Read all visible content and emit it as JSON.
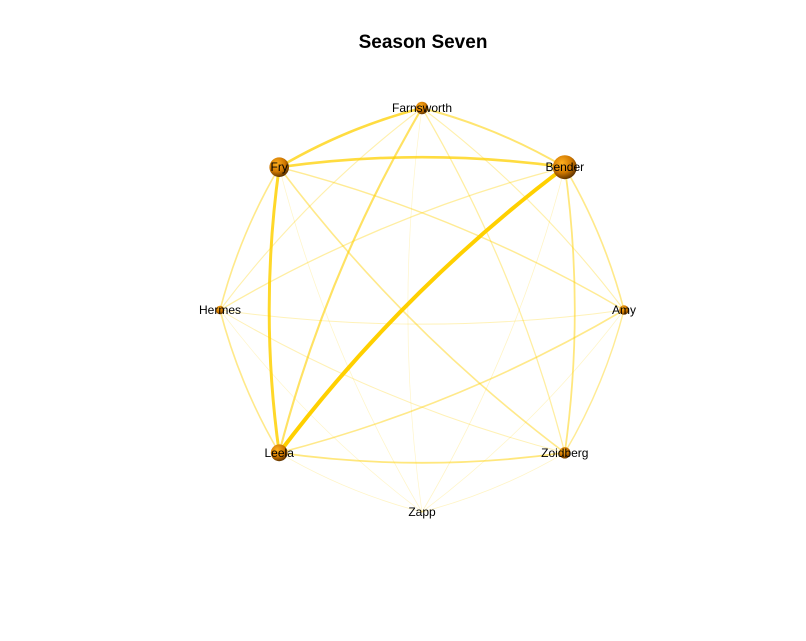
{
  "title": "Season Seven",
  "colors": {
    "edge": "#FFD000",
    "node_light": "#FFB020",
    "node_mid": "#D07800",
    "node_dark": "#4A2600",
    "label": "#000000",
    "background": "#FFFFFF"
  },
  "nodes": [
    {
      "id": "farnsworth",
      "label": "Farnsworth",
      "weight": 0.35
    },
    {
      "id": "bender",
      "label": "Bender",
      "weight": 1.0
    },
    {
      "id": "amy",
      "label": "Amy",
      "weight": 0.2
    },
    {
      "id": "zoidberg",
      "label": "Zoidberg",
      "weight": 0.3
    },
    {
      "id": "zapp",
      "label": "Zapp",
      "weight": 0.0
    },
    {
      "id": "leela",
      "label": "Leela",
      "weight": 0.6
    },
    {
      "id": "hermes",
      "label": "Hermes",
      "weight": 0.15
    },
    {
      "id": "fry",
      "label": "Fry",
      "weight": 0.75
    }
  ],
  "edges": [
    {
      "source": "fry",
      "target": "farnsworth",
      "weight": 0.6
    },
    {
      "source": "farnsworth",
      "target": "bender",
      "weight": 0.4
    },
    {
      "source": "fry",
      "target": "bender",
      "weight": 0.6
    },
    {
      "source": "fry",
      "target": "leela",
      "weight": 0.7
    },
    {
      "source": "bender",
      "target": "leela",
      "weight": 1.0
    },
    {
      "source": "farnsworth",
      "target": "leela",
      "weight": 0.45
    },
    {
      "source": "fry",
      "target": "hermes",
      "weight": 0.3
    },
    {
      "source": "hermes",
      "target": "leela",
      "weight": 0.3
    },
    {
      "source": "bender",
      "target": "amy",
      "weight": 0.3
    },
    {
      "source": "amy",
      "target": "zoidberg",
      "weight": 0.25
    },
    {
      "source": "bender",
      "target": "zoidberg",
      "weight": 0.35
    },
    {
      "source": "leela",
      "target": "zoidberg",
      "weight": 0.35
    },
    {
      "source": "leela",
      "target": "amy",
      "weight": 0.3
    },
    {
      "source": "fry",
      "target": "zoidberg",
      "weight": 0.3
    },
    {
      "source": "fry",
      "target": "amy",
      "weight": 0.25
    },
    {
      "source": "bender",
      "target": "hermes",
      "weight": 0.2
    },
    {
      "source": "farnsworth",
      "target": "hermes",
      "weight": 0.15
    },
    {
      "source": "farnsworth",
      "target": "zoidberg",
      "weight": 0.2
    },
    {
      "source": "farnsworth",
      "target": "amy",
      "weight": 0.15
    },
    {
      "source": "hermes",
      "target": "amy",
      "weight": 0.1
    },
    {
      "source": "hermes",
      "target": "zoidberg",
      "weight": 0.12
    },
    {
      "source": "leela",
      "target": "zapp",
      "weight": 0.05
    },
    {
      "source": "zapp",
      "target": "zoidberg",
      "weight": 0.05
    },
    {
      "source": "farnsworth",
      "target": "zapp",
      "weight": 0.03
    },
    {
      "source": "bender",
      "target": "zapp",
      "weight": 0.05
    },
    {
      "source": "fry",
      "target": "zapp",
      "weight": 0.04
    },
    {
      "source": "hermes",
      "target": "zapp",
      "weight": 0.03
    },
    {
      "source": "amy",
      "target": "zapp",
      "weight": 0.04
    }
  ]
}
